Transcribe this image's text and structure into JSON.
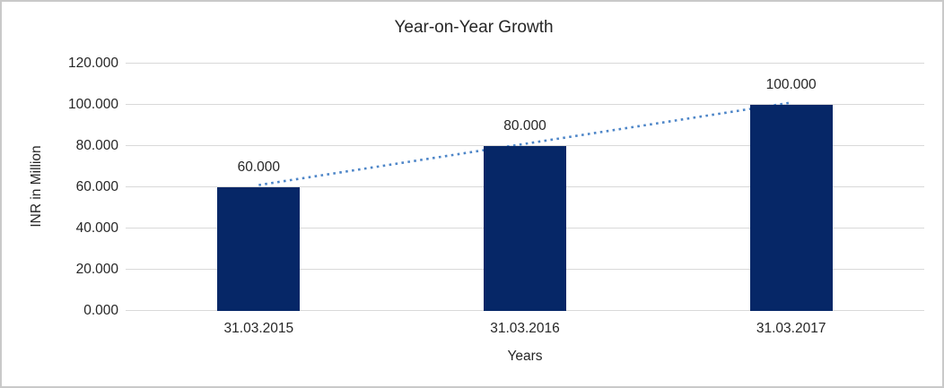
{
  "chart_data": {
    "type": "bar",
    "title": "Year-on-Year Growth",
    "categories": [
      "31.03.2015",
      "31.03.2016",
      "31.03.2017"
    ],
    "values": [
      60,
      80,
      100
    ],
    "data_labels": [
      "60.000",
      "80.000",
      "100.000"
    ],
    "xlabel": "Years",
    "ylabel": "INR in Million",
    "ylim": [
      0,
      120
    ],
    "ytick_values": [
      0,
      20,
      40,
      60,
      80,
      100,
      120
    ],
    "ytick_labels": [
      "0.000",
      "20.000",
      "40.000",
      "60.000",
      "80.000",
      "100.000",
      "120.000"
    ],
    "grid": true,
    "legend": "none",
    "trendline": {
      "type": "linear",
      "line_style": "dotted",
      "start": {
        "category_index": 0,
        "value": 60
      },
      "end": {
        "category_index": 2,
        "value": 100
      }
    },
    "colors": {
      "bar": "#062767",
      "trendline": "#4e86c8",
      "gridline": "#d9d9d9",
      "text": "#262626",
      "frame_border": "#c9c9c9"
    }
  }
}
